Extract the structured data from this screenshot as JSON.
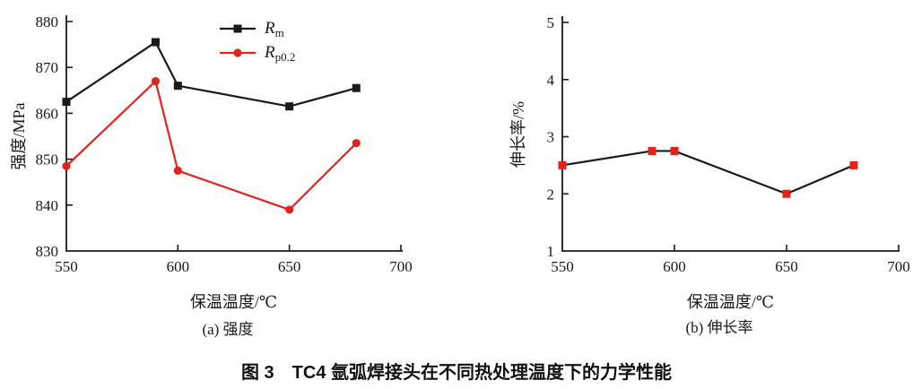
{
  "figure": {
    "caption": "图 3　TC4 氩弧焊接头在不同热处理温度下的力学性能"
  },
  "colors": {
    "axis": "#1a1a1a",
    "black_series": "#1a1a1a",
    "red_series": "#e2231a"
  },
  "chart_data": [
    {
      "id": "strength",
      "type": "line",
      "subtitle": "(a) 强度",
      "xlabel": "保温温度/℃",
      "ylabel": "强度/MPa",
      "x": [
        550,
        590,
        600,
        650,
        680
      ],
      "xlim": [
        550,
        700
      ],
      "ylim": [
        830,
        880
      ],
      "xticks": [
        550,
        600,
        650,
        700
      ],
      "yticks": [
        830,
        840,
        850,
        860,
        870,
        880
      ],
      "grid": false,
      "legend_position": "upper-center-inside",
      "series": [
        {
          "name_main": "R",
          "name_sub": "m",
          "marker": "square",
          "line_color": "#1a1a1a",
          "marker_color": "#1a1a1a",
          "values": [
            862.5,
            875.5,
            866,
            861.5,
            865.5
          ]
        },
        {
          "name_main": "R",
          "name_sub": "p0.2",
          "marker": "circle",
          "line_color": "#e2231a",
          "marker_color": "#e2231a",
          "values": [
            848.5,
            867,
            847.5,
            839,
            853.5
          ]
        }
      ]
    },
    {
      "id": "elongation",
      "type": "line",
      "subtitle": "(b) 伸长率",
      "xlabel": "保温温度/℃",
      "ylabel": "伸长率/%",
      "x": [
        550,
        590,
        600,
        650,
        680
      ],
      "xlim": [
        550,
        700
      ],
      "ylim": [
        1,
        5
      ],
      "xticks": [
        550,
        600,
        650,
        700
      ],
      "yticks": [
        1,
        2,
        3,
        4,
        5
      ],
      "grid": false,
      "legend_position": "none",
      "series": [
        {
          "name_main": "伸长率",
          "name_sub": "",
          "marker": "square",
          "line_color": "#1a1a1a",
          "marker_color": "#e2231a",
          "values": [
            2.5,
            2.75,
            2.75,
            2,
            2.5
          ]
        }
      ]
    }
  ]
}
